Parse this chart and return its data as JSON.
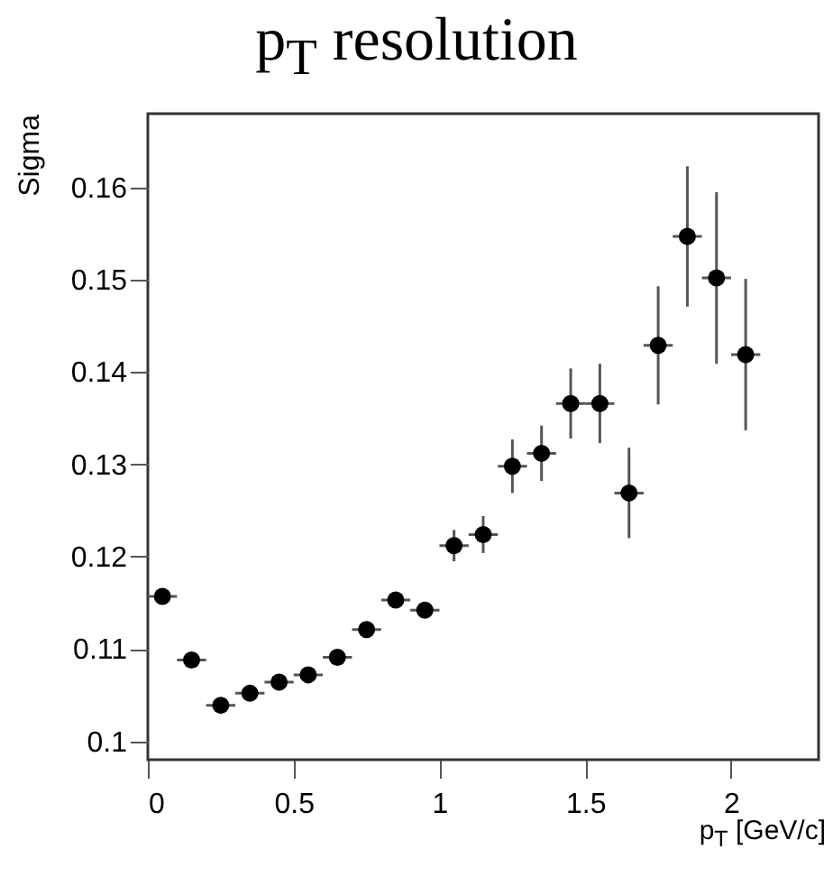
{
  "chart_data": {
    "type": "scatter",
    "title": "p$_{T}$ resolution",
    "xlabel": "p$_{T}$ [GeV/c]",
    "ylabel": "Sigma",
    "x": [
      0.05,
      0.15,
      0.25,
      0.35,
      0.45,
      0.55,
      0.65,
      0.75,
      0.85,
      0.95,
      1.05,
      1.15,
      1.25,
      1.35,
      1.45,
      1.55,
      1.65,
      1.75,
      1.85,
      1.95,
      2.05
    ],
    "series": [
      {
        "color": "#000000",
        "values": [
          0.1157,
          0.1088,
          0.1039,
          0.1052,
          0.1064,
          0.1072,
          0.1091,
          0.1121,
          0.1153,
          0.1142,
          0.1212,
          0.1224,
          0.1298,
          0.1312,
          0.1366,
          0.1366,
          0.1269,
          0.1429,
          0.1547,
          0.1502,
          0.1419
        ],
        "errors": [
          null,
          null,
          null,
          null,
          null,
          null,
          null,
          null,
          0.0008,
          0.0008,
          0.0017,
          0.002,
          0.0029,
          0.003,
          0.0038,
          0.0043,
          0.0049,
          0.0064,
          0.0076,
          0.0093,
          0.0082
        ],
        "xerrors": [
          0.05,
          0.05,
          0.05,
          0.05,
          0.05,
          0.05,
          0.05,
          0.05,
          0.05,
          0.05,
          0.05,
          0.05,
          0.05,
          0.05,
          0.05,
          0.05,
          0.05,
          0.05,
          0.05,
          0.05,
          0.05
        ]
      }
    ],
    "xlim": [
      0,
      2.3
    ],
    "ylim": [
      0.098,
      0.168
    ],
    "xticks": [
      0,
      0.5,
      1,
      1.5,
      2
    ],
    "yticks": [
      0.1,
      0.11,
      0.12,
      0.13,
      0.14,
      0.15,
      0.16
    ],
    "marker": "circle",
    "grid": false
  }
}
